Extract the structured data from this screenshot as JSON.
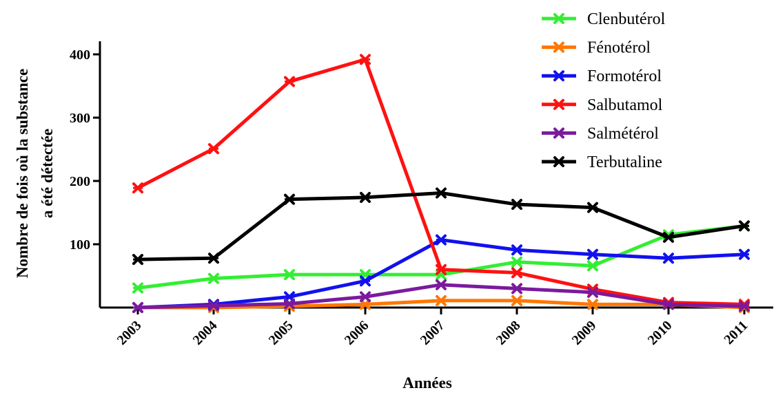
{
  "chart_data": {
    "type": "line",
    "xlabel": "Années",
    "ylabel": [
      "Nombre de fois où la substance",
      "a été détectée"
    ],
    "categories": [
      "2003",
      "2004",
      "2005",
      "2006",
      "2007",
      "2008",
      "2009",
      "2010",
      "2011"
    ],
    "yticks": [
      "100",
      "200",
      "300",
      "400"
    ],
    "ylim": [
      0,
      420
    ],
    "grid": false,
    "legend_position": "top-right",
    "series": [
      {
        "name": "Clenbutérol",
        "color": "#33ee33",
        "values": [
          31,
          46,
          52,
          52,
          52,
          72,
          66,
          115,
          129
        ]
      },
      {
        "name": "Fénotérol",
        "color": "#ff7700",
        "values": [
          0,
          0,
          2,
          5,
          11,
          11,
          5,
          5,
          0
        ]
      },
      {
        "name": "Formotérol",
        "color": "#1111ee",
        "values": [
          0,
          5,
          17,
          42,
          107,
          91,
          84,
          78,
          84
        ]
      },
      {
        "name": "Salbutamol",
        "color": "#ff1111",
        "values": [
          189,
          251,
          357,
          392,
          60,
          55,
          29,
          8,
          5
        ]
      },
      {
        "name": "Salmétérol",
        "color": "#7a1a9e",
        "values": [
          0,
          3,
          6,
          17,
          36,
          30,
          24,
          5,
          2
        ]
      },
      {
        "name": "Terbutaline",
        "color": "#000000",
        "values": [
          76,
          78,
          171,
          174,
          181,
          163,
          158,
          111,
          129
        ]
      }
    ]
  }
}
